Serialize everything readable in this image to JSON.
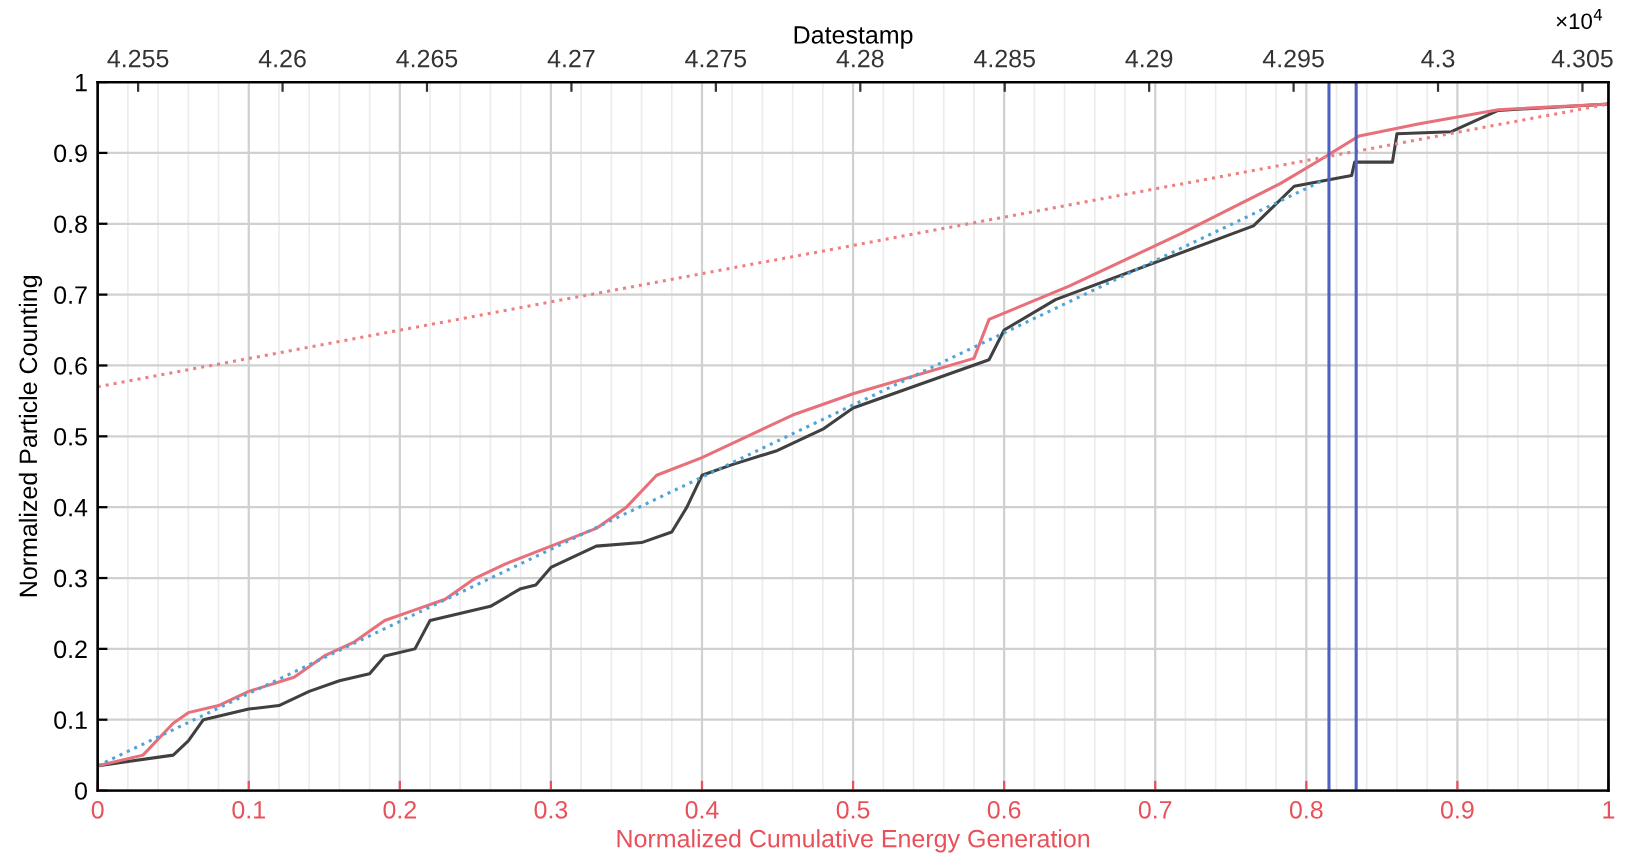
{
  "chart_data": {
    "type": "line",
    "xlabel": "Normalized Cumulative Energy Generation",
    "ylabel": "Normalized Particle Counting",
    "x2label": "Datestamp",
    "annotations": [
      "×10$^{4}$"
    ],
    "xlim": [
      0,
      1
    ],
    "xticks": [
      0,
      0.1,
      0.2,
      0.3,
      0.4,
      0.5,
      0.6,
      0.7,
      0.8,
      0.9,
      1
    ],
    "ylim": [
      0,
      1
    ],
    "yticks": [
      0,
      0.1,
      0.2,
      0.3,
      0.4,
      0.5,
      0.6,
      0.7,
      0.8,
      0.9,
      1
    ],
    "x2lim": [
      4.2536,
      4.3059
    ],
    "x2ticks": [
      4.255,
      4.26,
      4.265,
      4.27,
      4.275,
      4.28,
      4.285,
      4.29,
      4.295,
      4.3,
      4.305
    ],
    "grid": true,
    "legend": false,
    "marker": "none",
    "series": [
      {
        "color": "#404040",
        "line_style": "solid",
        "x": [
          0,
          0.05,
          0.06,
          0.07,
          0.1,
          0.12,
          0.14,
          0.16,
          0.18,
          0.19,
          0.21,
          0.22,
          0.26,
          0.28,
          0.29,
          0.3,
          0.33,
          0.36,
          0.38,
          0.39,
          0.4,
          0.42,
          0.45,
          0.48,
          0.5,
          0.59,
          0.6,
          0.634,
          0.765,
          0.792,
          0.83,
          0.832,
          0.857,
          0.86,
          0.896,
          0.927,
          1
        ],
        "values": [
          0.035,
          0.05,
          0.07,
          0.1,
          0.115,
          0.12,
          0.14,
          0.155,
          0.165,
          0.19,
          0.2,
          0.24,
          0.26,
          0.285,
          0.29,
          0.315,
          0.345,
          0.35,
          0.365,
          0.4,
          0.445,
          0.46,
          0.48,
          0.51,
          0.54,
          0.608,
          0.65,
          0.693,
          0.797,
          0.853,
          0.868,
          0.887,
          0.887,
          0.927,
          0.93,
          0.96,
          0.969
        ]
      },
      {
        "color": "#e8707a",
        "line_style": "solid",
        "x": [
          0,
          0.03,
          0.05,
          0.06,
          0.08,
          0.1,
          0.13,
          0.15,
          0.17,
          0.19,
          0.21,
          0.23,
          0.25,
          0.27,
          0.3,
          0.33,
          0.35,
          0.37,
          0.4,
          0.43,
          0.46,
          0.5,
          0.58,
          0.59,
          0.643,
          0.717,
          0.783,
          0.809,
          0.835,
          0.874,
          0.927,
          1
        ],
        "values": [
          0.035,
          0.05,
          0.095,
          0.11,
          0.12,
          0.14,
          0.16,
          0.19,
          0.21,
          0.24,
          0.255,
          0.27,
          0.3,
          0.32,
          0.345,
          0.37,
          0.4,
          0.445,
          0.47,
          0.5,
          0.53,
          0.56,
          0.61,
          0.665,
          0.712,
          0.786,
          0.857,
          0.89,
          0.924,
          0.941,
          0.961,
          0.969
        ]
      },
      {
        "color": "#4fa3d6",
        "line_style": "dotted",
        "x": [
          0,
          0.81
        ],
        "values": [
          0.035,
          0.86
        ]
      },
      {
        "color": "#f08080",
        "line_style": "dotted",
        "x": [
          0,
          1
        ],
        "values": [
          0.57,
          0.969
        ]
      }
    ],
    "ref_lines": [
      {
        "axis": "x",
        "value": 0.815,
        "color": "#5060c0"
      },
      {
        "axis": "x",
        "value": 0.833,
        "color": "#5060c0"
      }
    ]
  }
}
